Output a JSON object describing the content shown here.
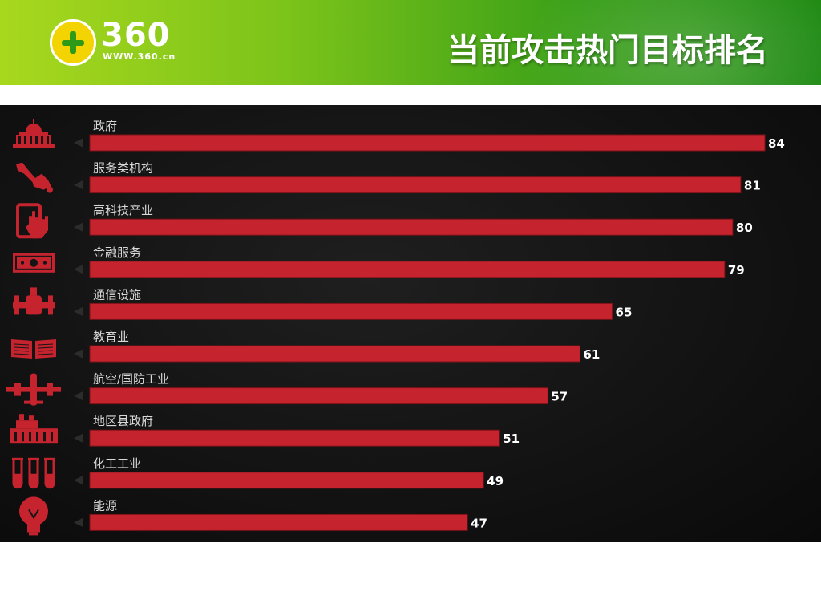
{
  "header": {
    "logo_number": "360",
    "logo_url": "WWW.360.cn",
    "title": "当前攻击热门目标排名"
  },
  "colors": {
    "bar": "#c5242f",
    "panel_bg": "#151515",
    "header_green": "#3aa018",
    "label": "#d8d8d8",
    "value": "#ffffff",
    "icon": "#c5242f"
  },
  "chart_data": {
    "type": "bar",
    "orientation": "horizontal",
    "categories": [
      "政府",
      "服务类机构",
      "高科技产业",
      "金融服务",
      "通信设施",
      "教育业",
      "航空/国防工业",
      "地区县政府",
      "化工工业",
      "能源"
    ],
    "values": [
      84,
      81,
      80,
      79,
      65,
      61,
      57,
      51,
      49,
      47
    ],
    "icons": [
      "government-building-icon",
      "tools-icon",
      "tablet-touch-icon",
      "money-icon",
      "pipeline-icon",
      "book-icon",
      "airplane-icon",
      "factory-icon",
      "test-tubes-icon",
      "lightbulb-icon"
    ],
    "title": "",
    "xlabel": "",
    "ylabel": "",
    "grid": false,
    "legend": "none"
  }
}
